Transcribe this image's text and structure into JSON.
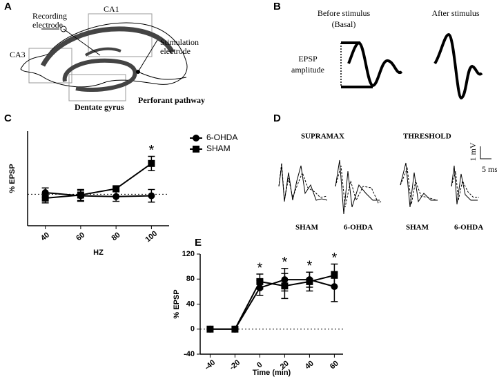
{
  "panel_labels": [
    "A",
    "B",
    "C",
    "D",
    "E"
  ],
  "panel_a": {
    "recording_electrode": [
      "Recording",
      "electrode"
    ],
    "ca1": "CA1",
    "ca3": "CA3",
    "stimulation_electrode": [
      "Stimulation",
      "electrode"
    ],
    "dentate_gyrus": "Dentate gyrus",
    "perforant_pathway": "Perforant pathway"
  },
  "panel_b": {
    "before": [
      "Before stimulus",
      "(Basal)"
    ],
    "after": "After stimulus",
    "epsp_amplitude": [
      "EPSP",
      "amplitude"
    ]
  },
  "panel_d": {
    "supramax": "SUPRAMAX",
    "threshold": "THRESHOLD",
    "scale_mv": "1 mV",
    "scale_ms": "5 ms",
    "trace_labels": [
      "SHAM",
      "6-OHDA",
      "SHAM",
      "6-OHDA"
    ]
  },
  "chart_data": [
    {
      "type": "line",
      "ylabel": "% EPSP",
      "xlabel": "HZ",
      "categories": [
        "40",
        "60",
        "80",
        "100"
      ],
      "ylim": [
        -40,
        80
      ],
      "baseline": 0,
      "legend": "right",
      "series": [
        {
          "name": "6-OHDA",
          "marker": "circle",
          "color": "#000000",
          "values": [
            2,
            -2,
            -3,
            -2
          ],
          "errors": [
            6,
            7,
            6,
            8
          ]
        },
        {
          "name": "SHAM",
          "marker": "square",
          "color": "#000000",
          "values": [
            -5,
            -1,
            7,
            39
          ],
          "errors": [
            6,
            7,
            2,
            9
          ]
        }
      ],
      "annotations": [
        {
          "x": "100",
          "label": "*"
        }
      ]
    },
    {
      "type": "line",
      "ylabel": "% EPSP",
      "xlabel": "Time (min)",
      "x": [
        -40,
        -20,
        0,
        20,
        40,
        60
      ],
      "xlim": [
        -48,
        67
      ],
      "xticks": [
        -40,
        -20,
        0,
        20,
        40,
        60
      ],
      "ylim": [
        -40,
        120
      ],
      "yticks": [
        -40,
        0,
        40,
        80,
        120
      ],
      "baseline": 0,
      "series": [
        {
          "marker": "circle",
          "color": "#000000",
          "values": [
            0,
            0,
            66,
            79,
            79,
            68
          ],
          "errors": [
            0,
            0,
            12,
            18,
            12,
            24
          ]
        },
        {
          "marker": "square",
          "color": "#000000",
          "values": [
            0,
            0,
            76,
            69,
            76,
            86
          ],
          "errors": [
            0,
            0,
            12,
            20,
            15,
            18
          ]
        }
      ],
      "annotations": [
        {
          "x": 0,
          "label": "*"
        },
        {
          "x": 20,
          "label": "*"
        },
        {
          "x": 40,
          "label": "*"
        },
        {
          "x": 60,
          "label": "*"
        }
      ]
    }
  ]
}
